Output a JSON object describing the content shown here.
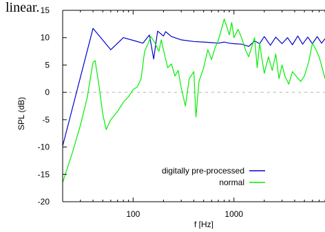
{
  "page_text": {
    "top_fragment": "linear."
  },
  "chart_data": {
    "type": "line",
    "title": "",
    "xlabel": "f [Hz]",
    "ylabel": "SPL (dB)",
    "xscale": "log",
    "xlim": [
      20,
      8000
    ],
    "ylim": [
      -20,
      15
    ],
    "yticks": [
      -20,
      -15,
      -10,
      -5,
      0,
      5,
      10,
      15
    ],
    "xticks": [
      {
        "value": 100,
        "label": "100"
      },
      {
        "value": 1000,
        "label": "1000"
      }
    ],
    "reference_line": {
      "y": 0,
      "style": "dashed",
      "color": "#b0b0b0"
    },
    "grid": false,
    "legend": "bottom-right",
    "series": [
      {
        "name": "digitally pre-processed",
        "color": "#0000cc",
        "points": [
          [
            20,
            -9.8
          ],
          [
            40,
            11.7
          ],
          [
            60,
            7.8
          ],
          [
            80,
            10.0
          ],
          [
            105,
            9.4
          ],
          [
            125,
            9.0
          ],
          [
            145,
            10.5
          ],
          [
            160,
            6.1
          ],
          [
            175,
            11.2
          ],
          [
            200,
            10.3
          ],
          [
            210,
            11.1
          ],
          [
            240,
            10.2
          ],
          [
            300,
            9.6
          ],
          [
            400,
            9.3
          ],
          [
            500,
            9.2
          ],
          [
            600,
            9.1
          ],
          [
            700,
            9.0
          ],
          [
            800,
            9.2
          ],
          [
            900,
            9.0
          ],
          [
            1000,
            8.9
          ],
          [
            1200,
            8.8
          ],
          [
            1400,
            8.4
          ],
          [
            1600,
            9.4
          ],
          [
            1800,
            8.9
          ],
          [
            2000,
            10.2
          ],
          [
            2300,
            8.6
          ],
          [
            2600,
            10.1
          ],
          [
            3000,
            8.9
          ],
          [
            3400,
            10.0
          ],
          [
            3800,
            8.7
          ],
          [
            4300,
            10.3
          ],
          [
            4800,
            8.8
          ],
          [
            5400,
            10.1
          ],
          [
            6000,
            8.9
          ],
          [
            6700,
            10.2
          ],
          [
            7400,
            9.0
          ],
          [
            8000,
            9.8
          ]
        ]
      },
      {
        "name": "normal",
        "color": "#00ee00",
        "points": [
          [
            20,
            -16.5
          ],
          [
            25,
            -11.0
          ],
          [
            30,
            -6.0
          ],
          [
            35,
            -1.0
          ],
          [
            40,
            5.5
          ],
          [
            42,
            5.8
          ],
          [
            46,
            1.0
          ],
          [
            50,
            -4.0
          ],
          [
            54,
            -6.8
          ],
          [
            60,
            -5.0
          ],
          [
            70,
            -3.5
          ],
          [
            80,
            -1.8
          ],
          [
            90,
            -0.8
          ],
          [
            100,
            0.5
          ],
          [
            110,
            1.0
          ],
          [
            120,
            2.5
          ],
          [
            130,
            7.5
          ],
          [
            140,
            8.8
          ],
          [
            150,
            10.2
          ],
          [
            165,
            9.0
          ],
          [
            180,
            7.5
          ],
          [
            190,
            9.6
          ],
          [
            200,
            7.8
          ],
          [
            220,
            4.5
          ],
          [
            240,
            5.2
          ],
          [
            260,
            3.0
          ],
          [
            280,
            4.0
          ],
          [
            300,
            0.8
          ],
          [
            330,
            -2.5
          ],
          [
            360,
            2.5
          ],
          [
            400,
            3.8
          ],
          [
            420,
            -4.5
          ],
          [
            450,
            2.0
          ],
          [
            500,
            4.5
          ],
          [
            550,
            7.8
          ],
          [
            600,
            6.0
          ],
          [
            650,
            8.2
          ],
          [
            700,
            9.5
          ],
          [
            750,
            11.5
          ],
          [
            800,
            13.4
          ],
          [
            850,
            12.0
          ],
          [
            900,
            10.5
          ],
          [
            950,
            12.8
          ],
          [
            1000,
            10.0
          ],
          [
            1100,
            11.5
          ],
          [
            1200,
            9.8
          ],
          [
            1300,
            7.8
          ],
          [
            1400,
            6.5
          ],
          [
            1600,
            10.0
          ],
          [
            1700,
            4.5
          ],
          [
            1800,
            9.0
          ],
          [
            1900,
            6.0
          ],
          [
            2000,
            3.5
          ],
          [
            2200,
            6.5
          ],
          [
            2400,
            4.0
          ],
          [
            2600,
            7.0
          ],
          [
            2800,
            2.5
          ],
          [
            3000,
            5.0
          ],
          [
            3200,
            3.0
          ],
          [
            3500,
            1.5
          ],
          [
            3800,
            3.8
          ],
          [
            4200,
            2.8
          ],
          [
            4600,
            2.0
          ],
          [
            5000,
            3.0
          ],
          [
            5500,
            5.5
          ],
          [
            6000,
            9.0
          ],
          [
            6500,
            7.8
          ],
          [
            7000,
            6.5
          ],
          [
            7500,
            4.5
          ],
          [
            8000,
            2.5
          ]
        ]
      }
    ]
  }
}
